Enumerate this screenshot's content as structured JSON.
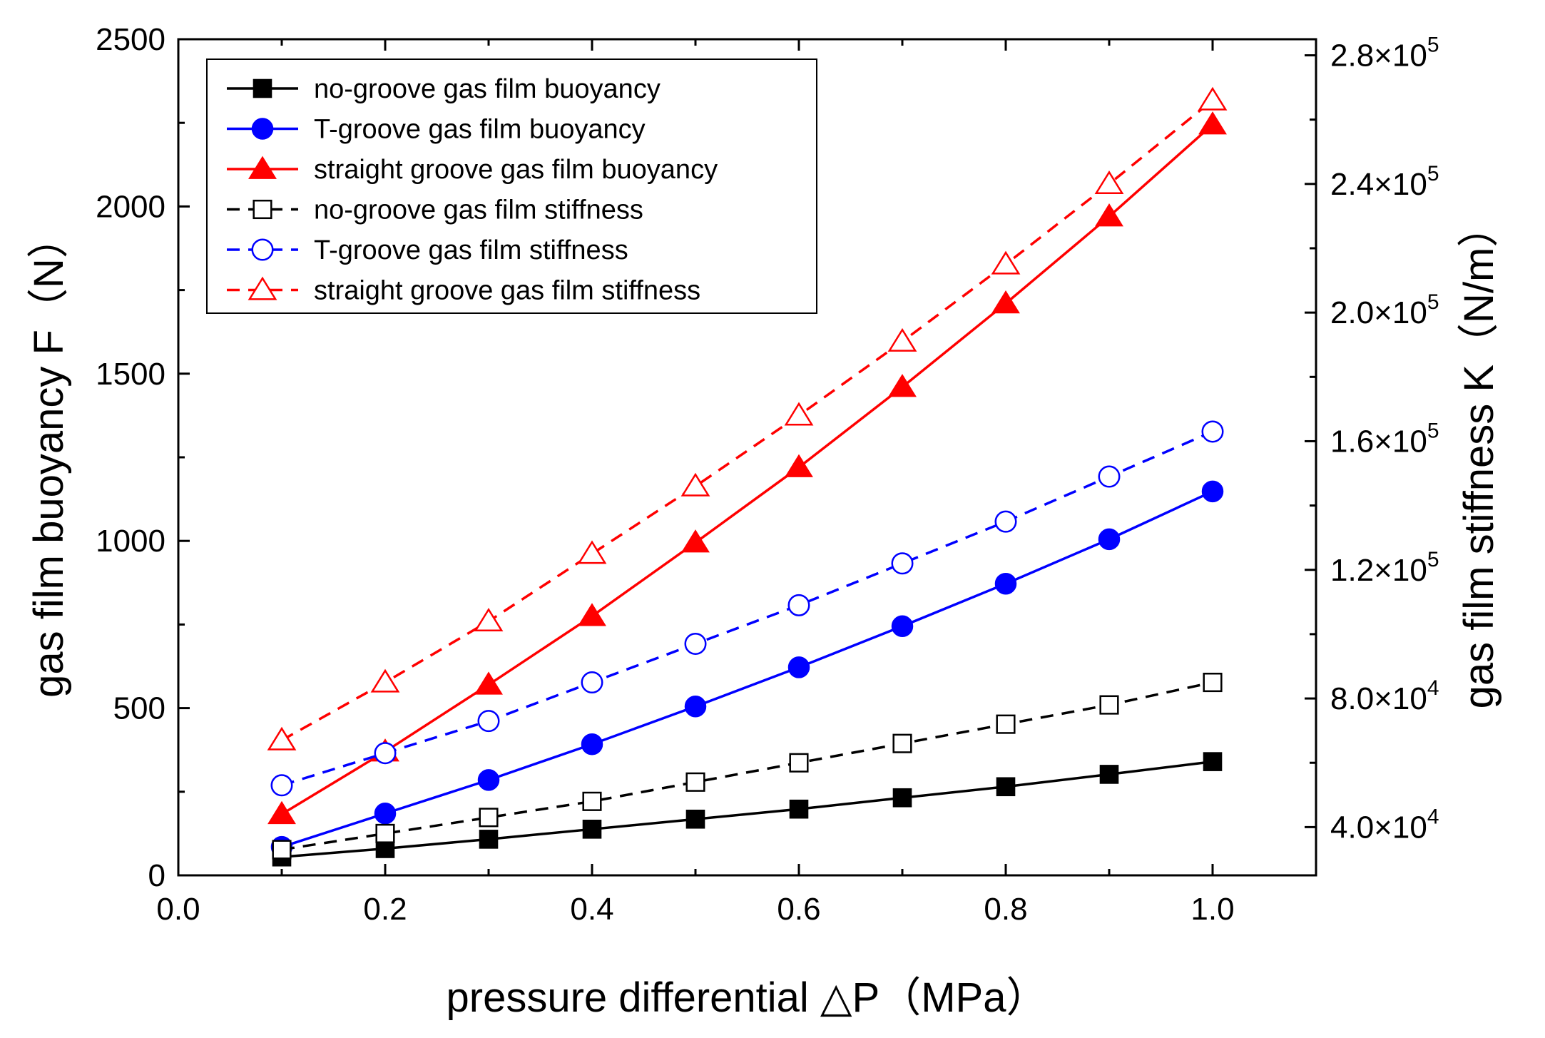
{
  "chart_data": {
    "type": "line",
    "title": "",
    "xlabel": "pressure differential △P（MPa）",
    "ylabel": "gas film buoyancy F（N）",
    "y2label": "gas film stiffness K（N/m）",
    "xlim": [
      0.0,
      1.1
    ],
    "ylim": [
      0,
      2500
    ],
    "y2lim": [
      25000,
      285000
    ],
    "x_ticks": [
      "0.0",
      "0.2",
      "0.4",
      "0.6",
      "0.8",
      "1.0"
    ],
    "y_ticks": [
      "0",
      "500",
      "1000",
      "1500",
      "2000",
      "2500"
    ],
    "y2_ticks": [
      {
        "value": 40000,
        "mantissa": "4.0×10",
        "exp": "4"
      },
      {
        "value": 80000,
        "mantissa": "8.0×10",
        "exp": "4"
      },
      {
        "value": 120000,
        "mantissa": "1.2×10",
        "exp": "5"
      },
      {
        "value": 160000,
        "mantissa": "1.6×10",
        "exp": "5"
      },
      {
        "value": 200000,
        "mantissa": "2.0×10",
        "exp": "5"
      },
      {
        "value": 240000,
        "mantissa": "2.4×10",
        "exp": "5"
      },
      {
        "value": 280000,
        "mantissa": "2.8×10",
        "exp": "5"
      }
    ],
    "legend_position": "top-left",
    "x": [
      0.1,
      0.2,
      0.3,
      0.4,
      0.5,
      0.6,
      0.7,
      0.8,
      0.9,
      1.0
    ],
    "series": [
      {
        "name": "no-groove gas film buoyancy",
        "axis": "left",
        "color": "#000000",
        "marker": "square",
        "filled": true,
        "dash": false,
        "values": [
          55,
          80,
          108,
          138,
          168,
          198,
          232,
          265,
          302,
          340
        ]
      },
      {
        "name": "T-groove gas film buoyancy",
        "axis": "left",
        "color": "#0000ff",
        "marker": "circle",
        "filled": true,
        "dash": false,
        "values": [
          85,
          185,
          285,
          392,
          505,
          622,
          745,
          872,
          1005,
          1148
        ]
      },
      {
        "name": "straight groove gas film buoyancy",
        "axis": "left",
        "color": "#ff0000",
        "marker": "triangle",
        "filled": true,
        "dash": false,
        "values": [
          183,
          370,
          570,
          775,
          995,
          1220,
          1460,
          1710,
          1970,
          2245
        ]
      },
      {
        "name": "no-groove gas film stiffness",
        "axis": "right",
        "color": "#000000",
        "marker": "square",
        "filled": false,
        "dash": true,
        "values": [
          33000,
          38000,
          43000,
          48000,
          54000,
          60000,
          66000,
          72000,
          78000,
          85000
        ]
      },
      {
        "name": "T-groove gas film stiffness",
        "axis": "right",
        "color": "#0000ff",
        "marker": "circle",
        "filled": false,
        "dash": true,
        "values": [
          53000,
          63000,
          73000,
          85000,
          97000,
          109000,
          122000,
          135000,
          149000,
          163000
        ]
      },
      {
        "name": "straight groove gas film stiffness",
        "axis": "right",
        "color": "#ff0000",
        "marker": "triangle",
        "filled": false,
        "dash": true,
        "values": [
          67000,
          85000,
          104000,
          125000,
          146000,
          168000,
          191000,
          215000,
          240000,
          266000
        ]
      }
    ]
  }
}
